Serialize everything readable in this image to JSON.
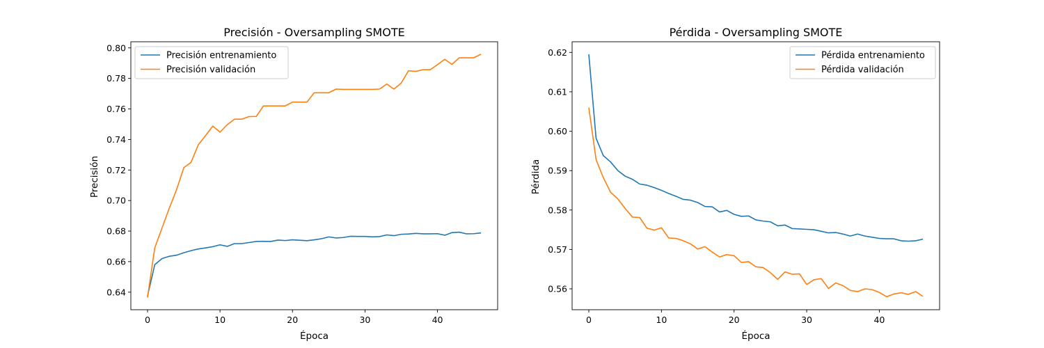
{
  "chart_data": [
    {
      "type": "line",
      "title": "Precisión - Oversampling SMOTE",
      "xlabel": "Época",
      "ylabel": "Precisión",
      "xlim": [
        -2.3,
        48.3
      ],
      "ylim": [
        0.6285,
        0.804
      ],
      "xticks": [
        0,
        10,
        20,
        30,
        40
      ],
      "yticks": [
        0.64,
        0.66,
        0.68,
        0.7,
        0.72,
        0.74,
        0.76,
        0.78,
        0.8
      ],
      "ytick_labels": [
        "0.64",
        "0.66",
        "0.68",
        "0.70",
        "0.72",
        "0.74",
        "0.76",
        "0.78",
        "0.80"
      ],
      "grid": false,
      "legend_position": "upper-left",
      "x": [
        0,
        1,
        2,
        3,
        4,
        5,
        6,
        7,
        8,
        9,
        10,
        11,
        12,
        13,
        14,
        15,
        16,
        17,
        18,
        19,
        20,
        21,
        22,
        23,
        24,
        25,
        26,
        27,
        28,
        29,
        30,
        31,
        32,
        33,
        34,
        35,
        36,
        37,
        38,
        39,
        40,
        41,
        42,
        43,
        44,
        45,
        46
      ],
      "series": [
        {
          "name": "Precisión entrenamiento",
          "color": "#1f77b4",
          "values": [
            0.6375,
            0.658,
            0.662,
            0.6635,
            0.6642,
            0.6658,
            0.6672,
            0.6683,
            0.669,
            0.6698,
            0.671,
            0.67,
            0.6718,
            0.6718,
            0.6725,
            0.6732,
            0.6733,
            0.6732,
            0.6741,
            0.6738,
            0.6743,
            0.674,
            0.6737,
            0.6743,
            0.675,
            0.6762,
            0.6755,
            0.6758,
            0.6766,
            0.6765,
            0.6765,
            0.6762,
            0.6764,
            0.6775,
            0.677,
            0.6779,
            0.6781,
            0.6785,
            0.6782,
            0.6782,
            0.6783,
            0.6773,
            0.679,
            0.6793,
            0.6782,
            0.6783,
            0.6788
          ]
        },
        {
          "name": "Precisión validación",
          "color": "#ff7f0e",
          "values": [
            0.6365,
            0.669,
            0.682,
            0.695,
            0.707,
            0.7215,
            0.725,
            0.7365,
            0.7425,
            0.7488,
            0.7448,
            0.7497,
            0.7533,
            0.7533,
            0.755,
            0.7551,
            0.762,
            0.762,
            0.762,
            0.762,
            0.7645,
            0.7645,
            0.7645,
            0.7706,
            0.7706,
            0.7706,
            0.773,
            0.7728,
            0.7728,
            0.7728,
            0.7728,
            0.7728,
            0.773,
            0.7763,
            0.773,
            0.777,
            0.785,
            0.7846,
            0.7857,
            0.7857,
            0.789,
            0.7925,
            0.7892,
            0.7935,
            0.7935,
            0.7935,
            0.7958
          ]
        }
      ]
    },
    {
      "type": "line",
      "title": "Pérdida - Oversampling SMOTE",
      "xlabel": "Época",
      "ylabel": "Pérdida",
      "xlim": [
        -2.3,
        48.3
      ],
      "ylim": [
        0.5547,
        0.6227
      ],
      "xticks": [
        0,
        10,
        20,
        30,
        40
      ],
      "yticks": [
        0.56,
        0.57,
        0.58,
        0.59,
        0.6,
        0.61,
        0.62
      ],
      "ytick_labels": [
        "0.56",
        "0.57",
        "0.58",
        "0.59",
        "0.60",
        "0.61",
        "0.62"
      ],
      "grid": false,
      "legend_position": "upper-right",
      "x": [
        0,
        1,
        2,
        3,
        4,
        5,
        6,
        7,
        8,
        9,
        10,
        11,
        12,
        13,
        14,
        15,
        16,
        17,
        18,
        19,
        20,
        21,
        22,
        23,
        24,
        25,
        26,
        27,
        28,
        29,
        30,
        31,
        32,
        33,
        34,
        35,
        36,
        37,
        38,
        39,
        40,
        41,
        42,
        43,
        44,
        45,
        46
      ],
      "series": [
        {
          "name": "Pérdida entrenamiento",
          "color": "#1f77b4",
          "values": [
            0.6195,
            0.5982,
            0.5938,
            0.5922,
            0.59,
            0.5886,
            0.5878,
            0.5866,
            0.5863,
            0.5857,
            0.585,
            0.5842,
            0.5835,
            0.5827,
            0.5825,
            0.5819,
            0.5809,
            0.5808,
            0.5795,
            0.5799,
            0.5789,
            0.5784,
            0.5785,
            0.5775,
            0.5772,
            0.577,
            0.576,
            0.5762,
            0.5753,
            0.5752,
            0.5751,
            0.575,
            0.5746,
            0.5742,
            0.5743,
            0.5739,
            0.5734,
            0.5739,
            0.5734,
            0.5731,
            0.5728,
            0.5727,
            0.5727,
            0.5722,
            0.5721,
            0.5722,
            0.5726
          ]
        },
        {
          "name": "Pérdida validación",
          "color": "#ff7f0e",
          "values": [
            0.606,
            0.5928,
            0.5882,
            0.5845,
            0.5828,
            0.5804,
            0.5782,
            0.5781,
            0.5754,
            0.5749,
            0.5755,
            0.5729,
            0.5728,
            0.5722,
            0.5714,
            0.5701,
            0.5707,
            0.5693,
            0.5681,
            0.5687,
            0.5684,
            0.5667,
            0.5669,
            0.5656,
            0.5654,
            0.5641,
            0.5624,
            0.5643,
            0.5637,
            0.5638,
            0.5611,
            0.5623,
            0.5626,
            0.5601,
            0.5615,
            0.5608,
            0.5596,
            0.5593,
            0.56,
            0.5598,
            0.5591,
            0.558,
            0.5587,
            0.559,
            0.5586,
            0.5593,
            0.5581
          ]
        }
      ]
    }
  ]
}
